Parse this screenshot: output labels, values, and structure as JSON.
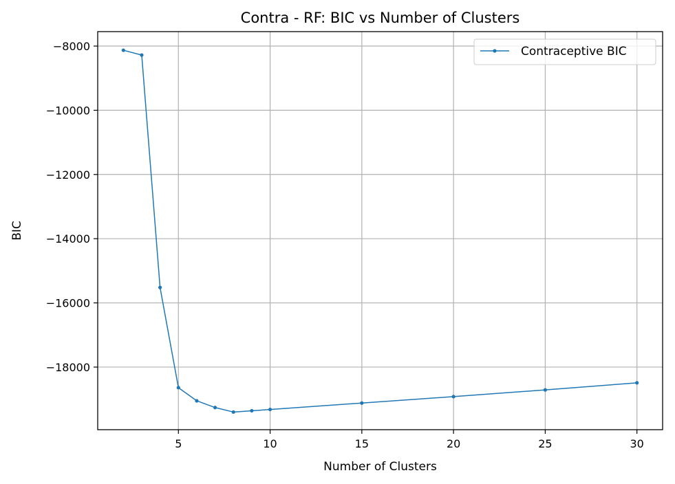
{
  "chart_data": {
    "type": "line",
    "title": "Contra - RF: BIC vs Number of Clusters",
    "xlabel": "Number of Clusters",
    "ylabel": "BIC",
    "xlim": [
      0.6,
      31.4
    ],
    "ylim": [
      -19950,
      -7550
    ],
    "xticks": [
      5,
      10,
      15,
      20,
      25,
      30
    ],
    "xtick_labels": [
      "5",
      "10",
      "15",
      "20",
      "25",
      "30"
    ],
    "yticks": [
      -8000,
      -10000,
      -12000,
      -14000,
      -16000,
      -18000
    ],
    "ytick_labels": [
      "−8000",
      "−10000",
      "−12000",
      "−14000",
      "−16000",
      "−18000"
    ],
    "grid": true,
    "legend_position": "top-right",
    "series": [
      {
        "name": "Contraceptive BIC",
        "color": "#1f77b4",
        "marker": "circle",
        "x": [
          2,
          3,
          4,
          5,
          6,
          7,
          8,
          9,
          10,
          15,
          20,
          25,
          30
        ],
        "y": [
          -8130,
          -8280,
          -15520,
          -18640,
          -19050,
          -19260,
          -19400,
          -19360,
          -19320,
          -19120,
          -18920,
          -18710,
          -18490
        ]
      }
    ]
  }
}
